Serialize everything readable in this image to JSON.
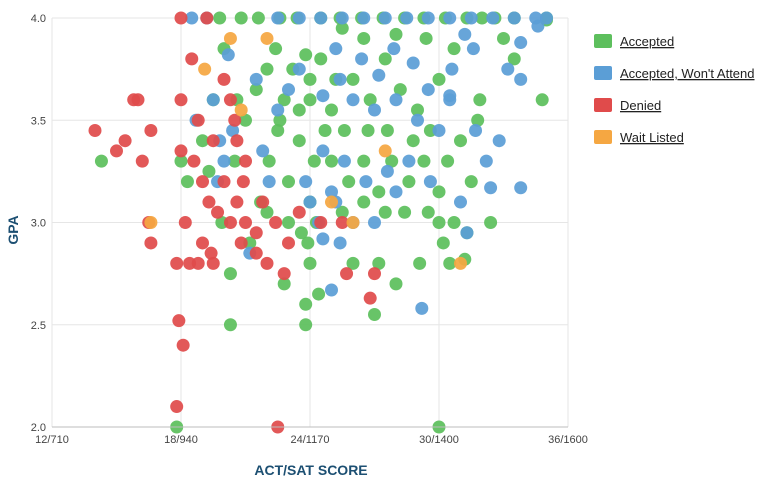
{
  "chart_data": {
    "type": "scatter",
    "xlabel": "ACT/SAT SCORE",
    "ylabel": "GPA",
    "xlim": [
      12,
      36
    ],
    "ylim": [
      2.0,
      4.0
    ],
    "x_ticks": [
      {
        "value": 12,
        "label": "12/710"
      },
      {
        "value": 18,
        "label": "18/940"
      },
      {
        "value": 24,
        "label": "24/1170"
      },
      {
        "value": 30,
        "label": "30/1400"
      },
      {
        "value": 36,
        "label": "36/1600"
      }
    ],
    "y_ticks": [
      {
        "value": 2.0,
        "label": "2.0"
      },
      {
        "value": 2.5,
        "label": "2.5"
      },
      {
        "value": 3.0,
        "label": "3.0"
      },
      {
        "value": 3.5,
        "label": "3.5"
      },
      {
        "value": 4.0,
        "label": "4.0"
      }
    ],
    "grid": true,
    "legend_position": "right",
    "series": [
      {
        "name": "Accepted",
        "color": "#5dbf5d",
        "points": [
          [
            14.3,
            3.3
          ],
          [
            17.8,
            2.0
          ],
          [
            20.3,
            2.5
          ],
          [
            22.8,
            2.7
          ],
          [
            23.8,
            2.5
          ],
          [
            23.8,
            2.6
          ],
          [
            24.0,
            2.8
          ],
          [
            23.9,
            2.9
          ],
          [
            24.4,
            2.65
          ],
          [
            26.0,
            2.8
          ],
          [
            27.0,
            2.55
          ],
          [
            27.2,
            2.8
          ],
          [
            28.0,
            2.7
          ],
          [
            29.1,
            2.8
          ],
          [
            30.0,
            2.0
          ],
          [
            30.0,
            3.0
          ],
          [
            30.5,
            2.8
          ],
          [
            30.2,
            2.9
          ],
          [
            30.7,
            3.0
          ],
          [
            31.3,
            2.95
          ],
          [
            32.4,
            3.0
          ],
          [
            31.5,
            3.2
          ],
          [
            31.0,
            3.4
          ],
          [
            31.8,
            3.5
          ],
          [
            31.9,
            3.6
          ],
          [
            33.5,
            3.8
          ],
          [
            34.8,
            3.6
          ],
          [
            35.0,
            3.99
          ],
          [
            35.0,
            4.0
          ],
          [
            33.0,
            3.9
          ],
          [
            32.0,
            4.0
          ],
          [
            33.5,
            4.0
          ],
          [
            31.2,
            2.82
          ],
          [
            29.5,
            3.05
          ],
          [
            28.4,
            3.05
          ],
          [
            19.0,
            3.4
          ],
          [
            19.3,
            3.25
          ],
          [
            18.3,
            3.2
          ],
          [
            18.0,
            3.3
          ],
          [
            19.9,
            3.0
          ],
          [
            20.3,
            2.75
          ],
          [
            21.2,
            2.9
          ],
          [
            21.7,
            3.1
          ],
          [
            22.1,
            3.3
          ],
          [
            22.5,
            3.45
          ],
          [
            22.8,
            3.6
          ],
          [
            22.0,
            3.75
          ],
          [
            20.6,
            3.6
          ],
          [
            20.0,
            3.85
          ],
          [
            19.8,
            4.0
          ],
          [
            20.8,
            4.0
          ],
          [
            21.6,
            4.0
          ],
          [
            22.6,
            4.0
          ],
          [
            23.4,
            4.0
          ],
          [
            24.5,
            4.0
          ],
          [
            25.4,
            4.0
          ],
          [
            26.4,
            4.0
          ],
          [
            27.4,
            4.0
          ],
          [
            28.4,
            4.0
          ],
          [
            29.3,
            4.0
          ],
          [
            30.3,
            4.0
          ],
          [
            31.3,
            4.0
          ],
          [
            32.6,
            4.0
          ],
          [
            23.2,
            3.75
          ],
          [
            23.8,
            3.82
          ],
          [
            24.5,
            3.8
          ],
          [
            25.2,
            3.7
          ],
          [
            24.0,
            3.6
          ],
          [
            25.0,
            3.55
          ],
          [
            26.0,
            3.7
          ],
          [
            26.8,
            3.6
          ],
          [
            27.5,
            3.8
          ],
          [
            28.2,
            3.65
          ],
          [
            29.0,
            3.55
          ],
          [
            30.0,
            3.7
          ],
          [
            30.7,
            3.85
          ],
          [
            29.4,
            3.9
          ],
          [
            28.0,
            3.92
          ],
          [
            26.5,
            3.9
          ],
          [
            25.5,
            3.95
          ],
          [
            23.0,
            3.2
          ],
          [
            23.5,
            3.4
          ],
          [
            24.2,
            3.3
          ],
          [
            25.0,
            3.3
          ],
          [
            25.8,
            3.2
          ],
          [
            26.5,
            3.3
          ],
          [
            27.2,
            3.15
          ],
          [
            27.8,
            3.3
          ],
          [
            28.6,
            3.2
          ],
          [
            29.3,
            3.3
          ],
          [
            30.4,
            3.3
          ],
          [
            24.0,
            3.1
          ],
          [
            25.5,
            3.05
          ],
          [
            26.5,
            3.1
          ],
          [
            27.5,
            3.05
          ],
          [
            22.0,
            3.05
          ],
          [
            22.6,
            3.5
          ],
          [
            21.0,
            3.5
          ],
          [
            20.5,
            3.3
          ],
          [
            21.5,
            3.65
          ],
          [
            19.5,
            3.6
          ],
          [
            23.0,
            3.0
          ],
          [
            24.3,
            3.0
          ],
          [
            23.6,
            2.95
          ],
          [
            30.0,
            3.15
          ],
          [
            29.6,
            3.45
          ],
          [
            28.8,
            3.4
          ],
          [
            27.6,
            3.45
          ],
          [
            26.7,
            3.45
          ],
          [
            25.6,
            3.45
          ],
          [
            24.7,
            3.45
          ],
          [
            23.5,
            3.55
          ],
          [
            24.0,
            3.7
          ],
          [
            22.4,
            3.85
          ]
        ]
      },
      {
        "name": "Accepted, Won't Attend",
        "color": "#5b9ed6",
        "points": [
          [
            18.5,
            4.0
          ],
          [
            19.2,
            4.0
          ],
          [
            20.2,
            3.82
          ],
          [
            18.7,
            3.5
          ],
          [
            19.5,
            3.6
          ],
          [
            19.8,
            3.4
          ],
          [
            20.0,
            3.3
          ],
          [
            19.7,
            3.2
          ],
          [
            20.4,
            3.45
          ],
          [
            21.2,
            2.85
          ],
          [
            22.1,
            3.2
          ],
          [
            21.8,
            3.35
          ],
          [
            21.5,
            3.7
          ],
          [
            22.5,
            3.55
          ],
          [
            23.0,
            3.65
          ],
          [
            23.5,
            3.75
          ],
          [
            22.5,
            4.0
          ],
          [
            23.5,
            4.0
          ],
          [
            24.5,
            4.0
          ],
          [
            25.5,
            4.0
          ],
          [
            26.5,
            4.0
          ],
          [
            27.5,
            4.0
          ],
          [
            28.5,
            4.0
          ],
          [
            29.5,
            4.0
          ],
          [
            30.5,
            4.0
          ],
          [
            31.5,
            4.0
          ],
          [
            32.5,
            4.0
          ],
          [
            33.5,
            4.0
          ],
          [
            34.5,
            4.0
          ],
          [
            35.0,
            4.0
          ],
          [
            34.6,
            3.96
          ],
          [
            33.8,
            3.88
          ],
          [
            33.2,
            3.75
          ],
          [
            33.8,
            3.7
          ],
          [
            32.8,
            3.4
          ],
          [
            32.2,
            3.3
          ],
          [
            32.4,
            3.17
          ],
          [
            33.8,
            3.17
          ],
          [
            31.7,
            3.45
          ],
          [
            30.5,
            3.6
          ],
          [
            30.6,
            3.75
          ],
          [
            29.5,
            3.65
          ],
          [
            28.8,
            3.78
          ],
          [
            27.9,
            3.85
          ],
          [
            27.2,
            3.72
          ],
          [
            26.4,
            3.8
          ],
          [
            25.4,
            3.7
          ],
          [
            24.6,
            3.62
          ],
          [
            25.2,
            3.85
          ],
          [
            26.0,
            3.6
          ],
          [
            27.0,
            3.55
          ],
          [
            28.0,
            3.6
          ],
          [
            29.0,
            3.5
          ],
          [
            30.0,
            3.45
          ],
          [
            29.6,
            3.2
          ],
          [
            28.6,
            3.3
          ],
          [
            27.6,
            3.25
          ],
          [
            26.6,
            3.2
          ],
          [
            25.6,
            3.3
          ],
          [
            24.6,
            3.35
          ],
          [
            23.8,
            3.2
          ],
          [
            24.0,
            3.1
          ],
          [
            25.0,
            3.15
          ],
          [
            26.0,
            3.0
          ],
          [
            27.0,
            3.0
          ],
          [
            28.0,
            3.15
          ],
          [
            24.6,
            2.92
          ],
          [
            25.4,
            2.9
          ],
          [
            24.4,
            3.0
          ],
          [
            25.2,
            3.1
          ],
          [
            25.0,
            2.67
          ],
          [
            31.3,
            2.95
          ],
          [
            31.0,
            3.1
          ],
          [
            29.2,
            2.58
          ],
          [
            30.5,
            3.62
          ],
          [
            31.6,
            3.85
          ],
          [
            31.2,
            3.92
          ]
        ]
      },
      {
        "name": "Denied",
        "color": "#e04b4b",
        "points": [
          [
            14.0,
            3.45
          ],
          [
            15.0,
            3.35
          ],
          [
            15.4,
            3.4
          ],
          [
            15.8,
            3.6
          ],
          [
            16.0,
            3.6
          ],
          [
            16.2,
            3.3
          ],
          [
            16.6,
            3.45
          ],
          [
            16.5,
            3.0
          ],
          [
            16.6,
            2.9
          ],
          [
            17.8,
            2.8
          ],
          [
            18.4,
            2.8
          ],
          [
            18.8,
            2.8
          ],
          [
            18.2,
            3.0
          ],
          [
            18.0,
            3.35
          ],
          [
            18.6,
            3.3
          ],
          [
            19.0,
            3.2
          ],
          [
            19.3,
            3.1
          ],
          [
            19.0,
            2.9
          ],
          [
            19.5,
            2.8
          ],
          [
            19.4,
            2.85
          ],
          [
            19.7,
            3.05
          ],
          [
            18.0,
            4.0
          ],
          [
            19.2,
            4.0
          ],
          [
            18.5,
            3.8
          ],
          [
            18.0,
            3.6
          ],
          [
            18.8,
            3.5
          ],
          [
            19.5,
            3.4
          ],
          [
            20.0,
            3.2
          ],
          [
            20.3,
            3.0
          ],
          [
            20.8,
            2.9
          ],
          [
            21.0,
            3.0
          ],
          [
            21.5,
            2.85
          ],
          [
            22.0,
            2.8
          ],
          [
            21.5,
            2.95
          ],
          [
            22.4,
            3.0
          ],
          [
            23.0,
            2.9
          ],
          [
            22.8,
            2.75
          ],
          [
            20.0,
            3.7
          ],
          [
            20.3,
            3.6
          ],
          [
            20.5,
            3.5
          ],
          [
            20.6,
            3.4
          ],
          [
            17.9,
            2.52
          ],
          [
            18.1,
            2.4
          ],
          [
            17.8,
            2.1
          ],
          [
            22.5,
            2.0
          ],
          [
            25.7,
            2.75
          ],
          [
            26.8,
            2.63
          ],
          [
            27.0,
            2.75
          ],
          [
            24.5,
            3.0
          ],
          [
            25.5,
            3.0
          ],
          [
            23.5,
            3.05
          ],
          [
            21.0,
            3.3
          ],
          [
            21.8,
            3.1
          ],
          [
            20.6,
            3.1
          ],
          [
            20.9,
            3.2
          ]
        ]
      },
      {
        "name": "Wait Listed",
        "color": "#f5a742",
        "points": [
          [
            16.6,
            3.0
          ],
          [
            19.1,
            3.75
          ],
          [
            20.3,
            3.9
          ],
          [
            31.0,
            2.8
          ],
          [
            26.0,
            3.0
          ],
          [
            20.8,
            3.55
          ],
          [
            22.0,
            3.9
          ],
          [
            25.0,
            3.1
          ],
          [
            27.5,
            3.35
          ]
        ]
      }
    ]
  }
}
